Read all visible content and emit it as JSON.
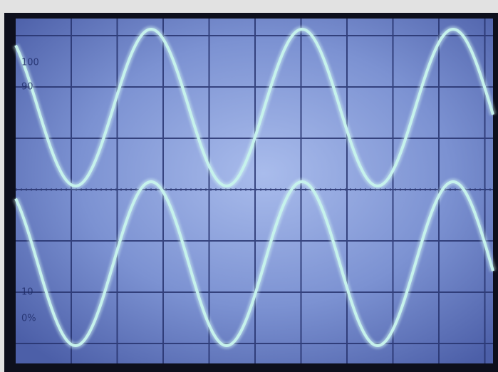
{
  "screen": {
    "graticule_labels": [
      "100",
      "90",
      "10",
      "0%"
    ]
  }
}
